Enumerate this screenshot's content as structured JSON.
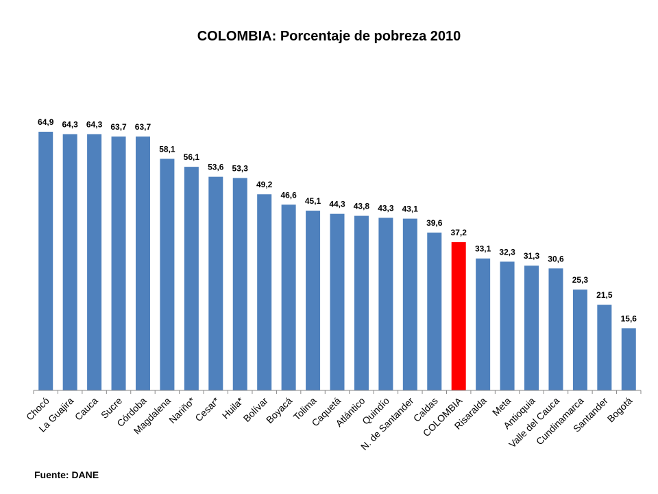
{
  "chart_data": {
    "type": "bar",
    "title": "COLOMBIA: Porcentaje de pobreza 2010",
    "categories": [
      "Chocó",
      "La Guajira",
      "Cauca",
      "Sucre",
      "Córdoba",
      "Magdalena",
      "Nariño*",
      "Cesar*",
      "Huila*",
      "Bolívar",
      "Boyacá",
      "Tolima",
      "Caquetá",
      "Atlántico",
      "Quindío",
      "N. de Santander",
      "Caldas",
      "COLOMBIA",
      "Risaralda",
      "Meta",
      "Antioquia",
      "Valle del Cauca",
      "Cundinamarca",
      "Santander",
      "Bogotá"
    ],
    "values": [
      64.9,
      64.3,
      64.3,
      63.7,
      63.7,
      58.1,
      56.1,
      53.6,
      53.3,
      49.2,
      46.6,
      45.1,
      44.3,
      43.8,
      43.3,
      43.1,
      39.6,
      37.2,
      33.1,
      32.3,
      31.3,
      30.6,
      25.3,
      21.5,
      15.6
    ],
    "value_labels": [
      "64,9",
      "64,3",
      "64,3",
      "63,7",
      "63,7",
      "58,1",
      "56,1",
      "53,6",
      "53,3",
      "49,2",
      "46,6",
      "45,1",
      "44,3",
      "43,8",
      "43,3",
      "43,1",
      "39,6",
      "37,2",
      "33,1",
      "32,3",
      "31,3",
      "30,6",
      "25,3",
      "21,5",
      "15,6"
    ],
    "highlight_category": "COLOMBIA",
    "ylim": [
      0,
      70
    ],
    "grid": false,
    "legend": "none",
    "colors": {
      "bar": "#4F81BD",
      "highlight": "#FF0000",
      "axis": "#868686"
    }
  },
  "footer": {
    "source": "Fuente: DANE"
  }
}
